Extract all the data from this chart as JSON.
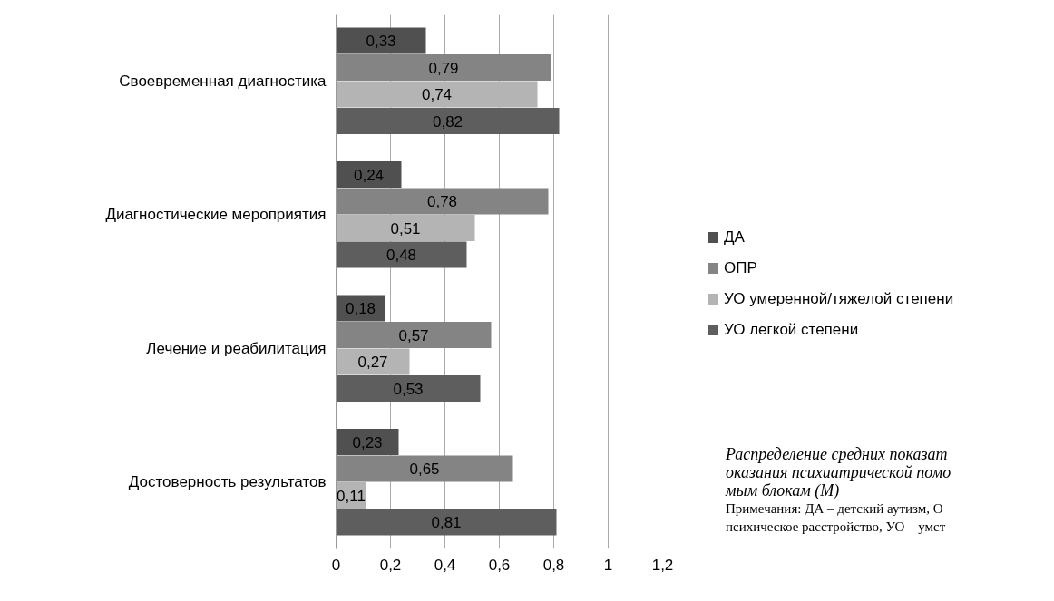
{
  "chart_data": {
    "type": "bar",
    "orientation": "horizontal",
    "categories": [
      "Своевременная диагностика",
      "Диагностические мероприятия",
      "Лечение и реабилитация",
      "Достоверность результатов"
    ],
    "series": [
      {
        "name": "ДА",
        "color": "#505050",
        "values": [
          0.33,
          0.24,
          0.18,
          0.23
        ],
        "value_labels": [
          "0,33",
          "0,24",
          "0,18",
          "0,23"
        ]
      },
      {
        "name": "ОПР",
        "color": "#848484",
        "values": [
          0.79,
          0.78,
          0.57,
          0.65
        ],
        "value_labels": [
          "0,79",
          "0,78",
          "0,57",
          "0,65"
        ]
      },
      {
        "name": "УО умеренной/тяжелой степени",
        "color": "#b4b4b4",
        "values": [
          0.74,
          0.51,
          0.27,
          0.11
        ],
        "value_labels": [
          "0,74",
          "0,51",
          "0,27",
          "0,11"
        ]
      },
      {
        "name": "УО легкой степени",
        "color": "#5e5e5e",
        "values": [
          0.82,
          0.48,
          0.53,
          0.81
        ],
        "value_labels": [
          "0,82",
          "0,48",
          "0,53",
          "0,81"
        ]
      }
    ],
    "xlim": [
      0,
      1.2
    ],
    "xticks": [
      0,
      {
        "value": 0.2,
        "label": "0,2"
      },
      {
        "value": 0.4,
        "label": "0,4"
      },
      {
        "value": 0.6,
        "label": "0,6"
      },
      {
        "value": 0.8,
        "label": "0,8"
      },
      1,
      {
        "value": 1.2,
        "label": "1,2"
      }
    ],
    "grid": "x",
    "legend": "right",
    "annotations": [
      "Распределение средних показат",
      "оказания психиатрической помо",
      "мым блокам (М)",
      "Примечания: ДА – детский аутизм, О",
      "психическое расстройство, УО – умст"
    ]
  }
}
